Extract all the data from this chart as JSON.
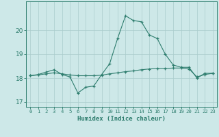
{
  "xlabel": "Humidex (Indice chaleur)",
  "x": [
    0,
    1,
    2,
    3,
    4,
    5,
    6,
    7,
    8,
    9,
    10,
    11,
    12,
    13,
    14,
    15,
    16,
    17,
    18,
    19,
    20,
    21,
    22,
    23
  ],
  "line1": [
    18.1,
    18.15,
    18.25,
    18.35,
    18.15,
    18.05,
    17.38,
    17.62,
    17.67,
    18.15,
    18.6,
    19.65,
    20.6,
    20.4,
    20.35,
    19.8,
    19.65,
    19.0,
    18.55,
    18.45,
    18.45,
    18.0,
    18.2,
    18.2
  ],
  "line2": [
    18.1,
    18.13,
    18.18,
    18.22,
    18.18,
    18.13,
    18.1,
    18.1,
    18.1,
    18.12,
    18.18,
    18.22,
    18.27,
    18.3,
    18.35,
    18.38,
    18.4,
    18.4,
    18.42,
    18.42,
    18.38,
    18.05,
    18.15,
    18.2
  ],
  "line_color": "#2e7d6e",
  "bg_color": "#cde8e8",
  "grid_color": "#aacccc",
  "ylim": [
    16.8,
    21.2
  ],
  "yticks": [
    17,
    18,
    19,
    20
  ],
  "xlim": [
    -0.5,
    23.5
  ]
}
